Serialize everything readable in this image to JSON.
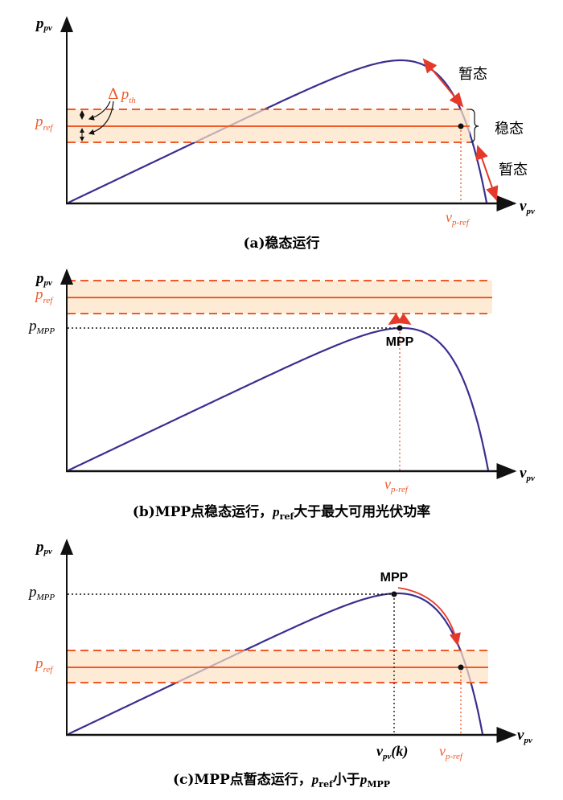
{
  "colors": {
    "curve": "#3a2f8f",
    "ref": "#ee5a2a",
    "band": "#fde7cf",
    "arrow": "#e53a2a",
    "axis": "#111111"
  },
  "axis": {
    "y_var": "p",
    "y_sub": "pv",
    "x_var": "v",
    "x_sub": "pv"
  },
  "labels": {
    "pref_var": "p",
    "pref_sub": "ref",
    "pmpp_var": "p",
    "pmpp_sub": "MPP",
    "vpref_var": "v",
    "vpref_sub": "p-ref",
    "delta": "Δ",
    "dpth_var": "p",
    "dpth_sub": "th",
    "mpp": "MPP",
    "vpvk_var": "v",
    "vpvk_sub": "pv",
    "vpvk_arg": "(k)",
    "transient": "暂态",
    "steady": "稳态"
  },
  "captions": {
    "a": "(a)稳态运行",
    "b_pre": "(b)MPP点稳态运行，",
    "b_var": "p",
    "b_sub": "ref",
    "b_post": "大于最大可用光伏功率",
    "c_pre": "(c)MPP点暂态运行，",
    "c_var": "p",
    "c_sub": "ref",
    "c_mid": "小于",
    "c_var2": "p",
    "c_sub2": "MPP"
  }
}
